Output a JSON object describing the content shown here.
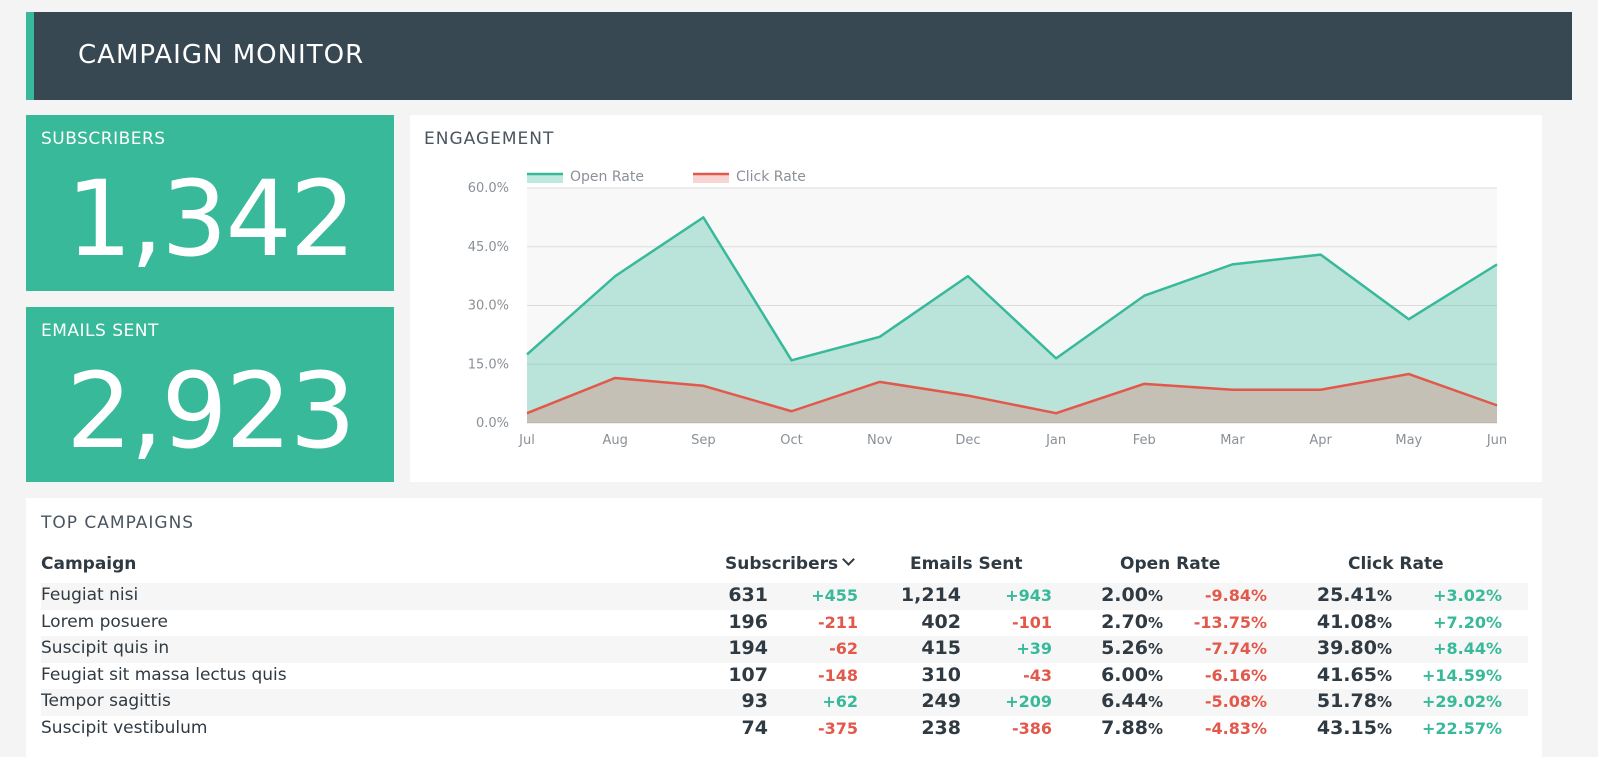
{
  "header": {
    "title": "CAMPAIGN MONITOR"
  },
  "kpis": {
    "subscribers": {
      "label": "SUBSCRIBERS",
      "value": "1,342"
    },
    "emails_sent": {
      "label": "EMAILS SENT",
      "value": "2,923"
    }
  },
  "engagement": {
    "title": "ENGAGEMENT"
  },
  "chart_data": {
    "type": "area",
    "title": "ENGAGEMENT",
    "categories": [
      "Jul",
      "Aug",
      "Sep",
      "Oct",
      "Nov",
      "Dec",
      "Jan",
      "Feb",
      "Mar",
      "Apr",
      "May",
      "Jun"
    ],
    "series": [
      {
        "name": "Open Rate",
        "color": "#37b99a",
        "values": [
          17.5,
          37.5,
          52.5,
          16,
          22,
          37.5,
          16.5,
          32.5,
          40.5,
          43,
          26.5,
          40.5
        ]
      },
      {
        "name": "Click Rate",
        "color": "#e2584a",
        "values": [
          2.5,
          11.5,
          9.5,
          3,
          10.5,
          7,
          2.5,
          10,
          8.5,
          8.5,
          12.5,
          4.5
        ]
      }
    ],
    "y_ticks": [
      "0.0%",
      "15.0%",
      "30.0%",
      "45.0%",
      "60.0%"
    ],
    "ylim": [
      0,
      60
    ],
    "grid": true,
    "legend": "top-left"
  },
  "campaigns": {
    "title": "TOP CAMPAIGNS",
    "columns": {
      "campaign": "Campaign",
      "subscribers": "Subscribers",
      "emails_sent": "Emails Sent",
      "open_rate": "Open Rate",
      "click_rate": "Click Rate"
    },
    "rows": [
      {
        "name": "Feugiat nisi",
        "subs": "631",
        "subs_delta": "+455",
        "sent": "1,214",
        "sent_delta": "+943",
        "open": "2.00",
        "open_delta": "-9.84%",
        "click": "25.41",
        "click_delta": "+3.02%"
      },
      {
        "name": "Lorem posuere",
        "subs": "196",
        "subs_delta": "-211",
        "sent": "402",
        "sent_delta": "-101",
        "open": "2.70",
        "open_delta": "-13.75%",
        "click": "41.08",
        "click_delta": "+7.20%"
      },
      {
        "name": "Suscipit quis in",
        "subs": "194",
        "subs_delta": "-62",
        "sent": "415",
        "sent_delta": "+39",
        "open": "5.26",
        "open_delta": "-7.74%",
        "click": "39.80",
        "click_delta": "+8.44%"
      },
      {
        "name": "Feugiat sit massa lectus quis",
        "subs": "107",
        "subs_delta": "-148",
        "sent": "310",
        "sent_delta": "-43",
        "open": "6.00",
        "open_delta": "-6.16%",
        "click": "41.65",
        "click_delta": "+14.59%"
      },
      {
        "name": "Tempor sagittis",
        "subs": "93",
        "subs_delta": "+62",
        "sent": "249",
        "sent_delta": "+209",
        "open": "6.44",
        "open_delta": "-5.08%",
        "click": "51.78",
        "click_delta": "+29.02%"
      },
      {
        "name": "Suscipit vestibulum",
        "subs": "74",
        "subs_delta": "-375",
        "sent": "238",
        "sent_delta": "-386",
        "open": "7.88",
        "open_delta": "-4.83%",
        "click": "43.15",
        "click_delta": "+22.57%"
      }
    ],
    "pct_symbol": "%"
  }
}
